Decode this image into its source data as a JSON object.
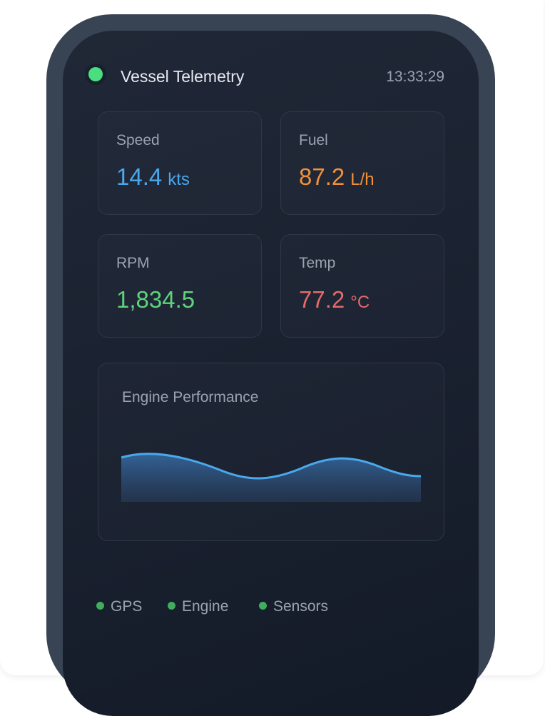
{
  "header": {
    "title": "Vessel Telemetry",
    "time": "13:33:29"
  },
  "metrics": [
    {
      "label": "Speed",
      "value": "14.4",
      "unit": "kts",
      "color": "#4aa8ec"
    },
    {
      "label": "Fuel",
      "value": "87.2",
      "unit": "L/h",
      "color": "#f0913a"
    },
    {
      "label": "RPM",
      "value": "1,834.5",
      "color": "#5fd37a"
    },
    {
      "label": "Temp",
      "value": "77.2",
      "unit": "°C",
      "color": "#e56a6a"
    }
  ],
  "chart": {
    "title": "Engine Performance"
  },
  "status": [
    "GPS",
    "Engine",
    "Sensors"
  ]
}
